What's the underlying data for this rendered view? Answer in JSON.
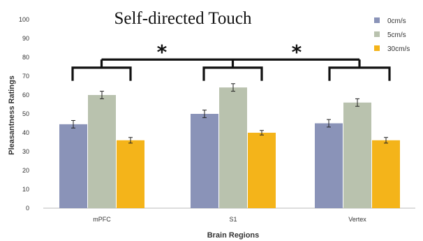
{
  "chart_data": {
    "type": "bar",
    "title": "Self-directed Touch",
    "xlabel": "Brain Regions",
    "ylabel": "Pleasantness Ratings",
    "ylim": [
      0,
      100
    ],
    "yticks": [
      "0",
      "10",
      "20",
      "30",
      "40",
      "50",
      "60",
      "70",
      "80",
      "90",
      "100"
    ],
    "categories": [
      "mPFC",
      "S1",
      "Vertex"
    ],
    "series": [
      {
        "name": "0cm/s",
        "color": "#8a93b8",
        "values": [
          44.5,
          50,
          45
        ],
        "errors": [
          2,
          2,
          2
        ]
      },
      {
        "name": "5cm/s",
        "color": "#b9c2ae",
        "values": [
          60,
          64,
          56
        ],
        "errors": [
          2,
          2,
          2
        ]
      },
      {
        "name": "30cm/s",
        "color": "#f4b41a",
        "values": [
          36,
          40,
          36
        ],
        "errors": [
          1.5,
          1.2,
          1.5
        ]
      }
    ],
    "legend_position": "top-right",
    "significance_markers": [
      "*",
      "*"
    ],
    "grid": false
  }
}
